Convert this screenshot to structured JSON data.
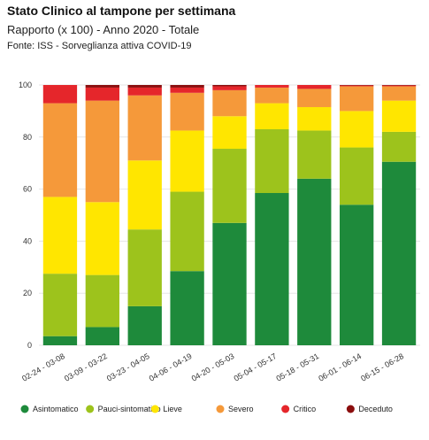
{
  "header": {
    "title": "Stato Clinico al tampone per settimana",
    "subtitle": "Rapporto (x 100) - Anno 2020 - Totale",
    "source": "Fonte: ISS - Sorveglianza attiva COVID-19"
  },
  "chart_data": {
    "type": "bar",
    "stacked": true,
    "categories": [
      "02-24 - 03-08",
      "03-09 - 03-22",
      "03-23 - 04-05",
      "04-06 - 04-19",
      "04-20 - 05-03",
      "05-04 - 05-17",
      "05-18 - 05-31",
      "06-01 - 06-14",
      "06-15 - 06-28"
    ],
    "ylim": [
      0,
      100
    ],
    "yticks": [
      0,
      20,
      40,
      60,
      80,
      100
    ],
    "legend_position": "bottom",
    "grid": true,
    "series": [
      {
        "name": "Asintomatico",
        "color": "#1e8a3b",
        "values": [
          3.5,
          7,
          15,
          28.5,
          47,
          58.5,
          64,
          54,
          70.5
        ]
      },
      {
        "name": "Pauci-sintomatico",
        "color": "#9dc31c",
        "values": [
          24,
          20,
          29.5,
          30.5,
          28.5,
          24.5,
          18.5,
          22,
          11.5
        ]
      },
      {
        "name": "Lieve",
        "color": "#ffe600",
        "values": [
          29.5,
          28,
          26.5,
          23.5,
          12.5,
          10,
          9,
          14,
          12
        ]
      },
      {
        "name": "Severo",
        "color": "#f5993a",
        "values": [
          36,
          39,
          25,
          14.5,
          10,
          6,
          7,
          9.5,
          5.5
        ]
      },
      {
        "name": "Critico",
        "color": "#e5262b",
        "values": [
          7,
          5,
          3,
          2,
          1.5,
          1,
          1.5,
          0.3,
          0.3
        ]
      },
      {
        "name": "Deceduto",
        "color": "#8b0e0e",
        "values": [
          0,
          1,
          1,
          1,
          0.5,
          0,
          0,
          0.2,
          0.2
        ]
      }
    ]
  }
}
